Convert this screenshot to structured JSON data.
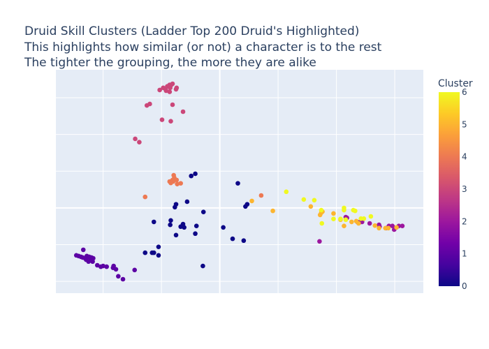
{
  "chart_data": {
    "type": "scatter",
    "title_lines": [
      "Druid Skill Clusters (Ladder Top 200 Druid's Highlighted)",
      "This highlights how similar (or not) a character is to the rest",
      "The tighter the grouping, the more they are alike"
    ],
    "xlabel": "",
    "ylabel": "",
    "xlim": [
      -2.81,
      3.49
    ],
    "ylim": [
      -2.32,
      3.76
    ],
    "tick_labels_visible": false,
    "grid": true,
    "background": "#e5ecf6",
    "colorbar": {
      "title": "Cluster",
      "ticks": [
        "0",
        "1",
        "2",
        "3",
        "4",
        "5",
        "6"
      ],
      "range": [
        0,
        6
      ],
      "colorscale": [
        "#0d0887",
        "#46039f",
        "#7201a8",
        "#9c179e",
        "#bd3786",
        "#d8576b",
        "#ed7953",
        "#fb9f3a",
        "#fdca26",
        "#f0f921"
      ]
    },
    "series": [
      {
        "cluster": 0,
        "points": [
          [
            -0.49,
            0.87
          ],
          [
            -0.42,
            0.93
          ],
          [
            0.31,
            0.67
          ],
          [
            0.44,
            0.04
          ],
          [
            0.47,
            0.1
          ],
          [
            -0.56,
            0.17
          ],
          [
            -0.77,
            0.02
          ],
          [
            -0.75,
            0.1
          ],
          [
            -0.28,
            -0.11
          ],
          [
            -1.13,
            -0.38
          ],
          [
            -0.84,
            -0.34
          ],
          [
            -0.85,
            -0.46
          ],
          [
            -0.63,
            -0.44
          ],
          [
            -0.67,
            -0.51
          ],
          [
            -0.61,
            -0.53
          ],
          [
            -0.4,
            -0.49
          ],
          [
            -0.75,
            -0.74
          ],
          [
            -0.42,
            -0.7
          ],
          [
            0.06,
            -0.53
          ],
          [
            0.22,
            -0.84
          ],
          [
            0.41,
            -0.89
          ],
          [
            -1.28,
            -1.22
          ],
          [
            -1.16,
            -1.22
          ],
          [
            -1.13,
            -1.22
          ],
          [
            -1.05,
            -1.06
          ],
          [
            -1.05,
            -1.29
          ],
          [
            -0.29,
            -1.58
          ]
        ]
      },
      {
        "cluster": 1,
        "points": [
          [
            -2.34,
            -1.14
          ],
          [
            -2.46,
            -1.29
          ],
          [
            -2.42,
            -1.31
          ],
          [
            -2.38,
            -1.33
          ],
          [
            -2.35,
            -1.35
          ],
          [
            -2.31,
            -1.37
          ],
          [
            -2.28,
            -1.31
          ],
          [
            -2.24,
            -1.33
          ],
          [
            -2.2,
            -1.35
          ],
          [
            -2.17,
            -1.37
          ],
          [
            -2.29,
            -1.41
          ],
          [
            -2.22,
            -1.43
          ],
          [
            -2.25,
            -1.46
          ],
          [
            -2.18,
            -1.46
          ],
          [
            -2.1,
            -1.56
          ],
          [
            -2.04,
            -1.6
          ],
          [
            -2.0,
            -1.58
          ],
          [
            -1.94,
            -1.6
          ],
          [
            -1.83,
            -1.63
          ],
          [
            -1.82,
            -1.58
          ],
          [
            -1.78,
            -1.67
          ],
          [
            -1.74,
            -1.86
          ],
          [
            -1.66,
            -1.94
          ],
          [
            -1.46,
            -1.69
          ]
        ]
      },
      {
        "cluster": 2,
        "points": [
          [
            1.71,
            -0.91
          ],
          [
            2.16,
            -0.25
          ],
          [
            2.18,
            -0.27
          ],
          [
            2.36,
            -0.38
          ],
          [
            2.42,
            -0.38
          ],
          [
            2.44,
            -0.38
          ],
          [
            2.57,
            -0.42
          ],
          [
            2.73,
            -0.46
          ],
          [
            2.74,
            -0.51
          ],
          [
            2.85,
            -0.55
          ],
          [
            2.9,
            -0.49
          ],
          [
            2.96,
            -0.49
          ],
          [
            2.99,
            -0.59
          ],
          [
            3.03,
            -0.53
          ],
          [
            3.07,
            -0.49
          ],
          [
            3.13,
            -0.49
          ]
        ]
      },
      {
        "cluster": 3,
        "points": [
          [
            -1.03,
            3.21
          ],
          [
            -0.97,
            3.27
          ],
          [
            -0.93,
            3.23
          ],
          [
            -0.9,
            3.31
          ],
          [
            -0.86,
            3.35
          ],
          [
            -0.81,
            3.38
          ],
          [
            -0.85,
            3.27
          ],
          [
            -0.92,
            3.19
          ],
          [
            -0.86,
            3.16
          ],
          [
            -0.74,
            3.27
          ],
          [
            -0.75,
            3.23
          ],
          [
            -0.83,
            3.35
          ],
          [
            -1.25,
            2.79
          ],
          [
            -1.2,
            2.83
          ],
          [
            -0.81,
            2.81
          ],
          [
            -0.63,
            2.62
          ],
          [
            -0.99,
            2.4
          ],
          [
            -0.84,
            2.36
          ],
          [
            -1.45,
            1.88
          ],
          [
            -1.38,
            1.79
          ]
        ]
      },
      {
        "cluster": 4,
        "points": [
          [
            -0.79,
            0.89
          ],
          [
            -0.78,
            0.82
          ],
          [
            -0.81,
            0.76
          ],
          [
            -0.86,
            0.72
          ],
          [
            -0.8,
            0.72
          ],
          [
            -0.74,
            0.76
          ],
          [
            -0.73,
            0.65
          ],
          [
            -0.67,
            0.67
          ],
          [
            -0.84,
            0.68
          ],
          [
            -1.28,
            0.3
          ],
          [
            0.71,
            0.34
          ]
        ]
      },
      {
        "cluster": 5,
        "points": [
          [
            0.55,
            0.19
          ],
          [
            0.91,
            -0.08
          ],
          [
            1.56,
            0.04
          ],
          [
            1.72,
            -0.19
          ],
          [
            1.74,
            -0.13
          ],
          [
            1.76,
            -0.1
          ],
          [
            1.95,
            -0.15
          ],
          [
            2.13,
            -0.49
          ],
          [
            2.07,
            -0.32
          ],
          [
            2.26,
            -0.38
          ],
          [
            2.34,
            -0.36
          ],
          [
            2.38,
            -0.42
          ],
          [
            2.66,
            -0.48
          ],
          [
            2.73,
            -0.55
          ],
          [
            2.84,
            -0.55
          ],
          [
            2.89,
            -0.55
          ],
          [
            3.03,
            -0.53
          ]
        ]
      },
      {
        "cluster": 6,
        "points": [
          [
            1.14,
            0.44
          ],
          [
            1.44,
            0.23
          ],
          [
            1.62,
            0.21
          ],
          [
            1.74,
            -0.06
          ],
          [
            1.75,
            -0.42
          ],
          [
            1.95,
            -0.3
          ],
          [
            2.07,
            -0.3
          ],
          [
            2.13,
            0.0
          ],
          [
            2.13,
            -0.06
          ],
          [
            2.29,
            -0.06
          ],
          [
            2.32,
            -0.08
          ],
          [
            2.16,
            -0.32
          ],
          [
            2.42,
            -0.29
          ],
          [
            2.47,
            -0.29
          ],
          [
            2.59,
            -0.23
          ]
        ]
      }
    ]
  }
}
